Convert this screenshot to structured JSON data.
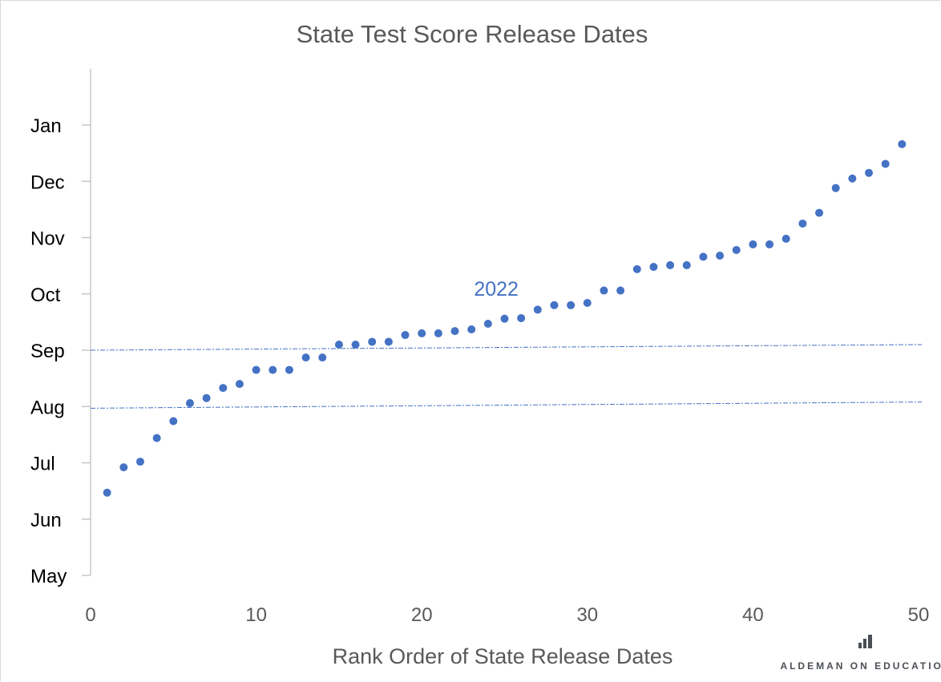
{
  "chart_data": {
    "type": "scatter",
    "title": "State Test Score Release Dates",
    "xlabel": "Rank Order of State Release Dates",
    "ylabel": "",
    "xlim": [
      0,
      50
    ],
    "ylim": [
      0,
      9
    ],
    "x_ticks": [
      0,
      10,
      20,
      30,
      40,
      50
    ],
    "y_ticks": [
      {
        "value": 0,
        "label": "May"
      },
      {
        "value": 1,
        "label": "Jun"
      },
      {
        "value": 2,
        "label": "Jul"
      },
      {
        "value": 3,
        "label": "Aug"
      },
      {
        "value": 4,
        "label": "Sep"
      },
      {
        "value": 5,
        "label": "Oct"
      },
      {
        "value": 6,
        "label": "Nov"
      },
      {
        "value": 7,
        "label": "Dec"
      },
      {
        "value": 8,
        "label": "Jan"
      }
    ],
    "y_units": "months after May 1",
    "grid": false,
    "series": [
      {
        "name": "2022",
        "color": "#4472c4",
        "x": [
          1,
          2,
          3,
          4,
          5,
          6,
          7,
          8,
          9,
          10,
          11,
          12,
          13,
          14,
          15,
          16,
          17,
          18,
          19,
          20,
          21,
          22,
          23,
          24,
          25,
          26,
          27,
          28,
          29,
          30,
          31,
          32,
          33,
          34,
          35,
          36,
          37,
          38,
          39,
          40,
          41,
          42,
          43,
          44,
          45,
          46,
          47,
          48,
          49
        ],
        "y": [
          1.47,
          1.92,
          2.02,
          2.44,
          2.74,
          3.06,
          3.15,
          3.33,
          3.4,
          3.65,
          3.65,
          3.65,
          3.87,
          3.87,
          4.1,
          4.1,
          4.15,
          4.15,
          4.27,
          4.3,
          4.3,
          4.34,
          4.37,
          4.47,
          4.56,
          4.57,
          4.72,
          4.8,
          4.8,
          4.84,
          5.06,
          5.06,
          5.44,
          5.48,
          5.51,
          5.51,
          5.66,
          5.68,
          5.78,
          5.88,
          5.88,
          5.98,
          6.25,
          6.44,
          6.88,
          7.05,
          7.15,
          7.31,
          7.66
        ]
      }
    ],
    "reference_lines": [
      {
        "name": "sep-line",
        "x": [
          0,
          50
        ],
        "y": [
          4.0,
          4.1
        ],
        "color": "#4472c4",
        "style": "dash-dot"
      },
      {
        "name": "aug-line",
        "x": [
          0,
          50
        ],
        "y": [
          2.97,
          3.08
        ],
        "color": "#4472c4",
        "style": "dash-dot"
      }
    ],
    "annotations": [
      {
        "text": "2022",
        "x": 24.5,
        "y": 5.0,
        "color": "#4472c4"
      }
    ]
  },
  "branding": {
    "text": "ALDEMAN ON EDUCATION"
  }
}
